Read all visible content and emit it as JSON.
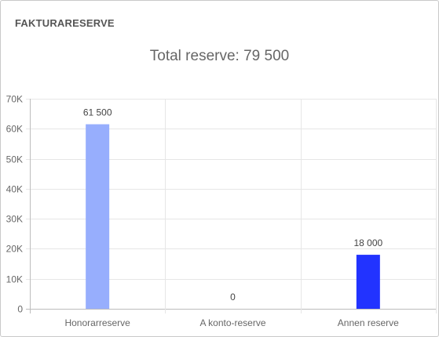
{
  "card": {
    "title": "FAKTURARESERVE"
  },
  "chart_data": {
    "type": "bar",
    "title": "Total reserve: 79 500",
    "categories": [
      "Honorarreserve",
      "A konto-reserve",
      "Annen reserve"
    ],
    "values": [
      61500,
      0,
      18000
    ],
    "value_labels": [
      "61 500",
      "0",
      "18 000"
    ],
    "colors": [
      "#97aefd",
      "#7d95ff",
      "#2233ff"
    ],
    "ylim": [
      0,
      70000
    ],
    "yticks": [
      0,
      10000,
      20000,
      30000,
      40000,
      50000,
      60000,
      70000
    ],
    "ytick_labels": [
      "0",
      "10K",
      "20K",
      "30K",
      "40K",
      "50K",
      "60K",
      "70K"
    ],
    "grid": true,
    "legend": "none"
  }
}
